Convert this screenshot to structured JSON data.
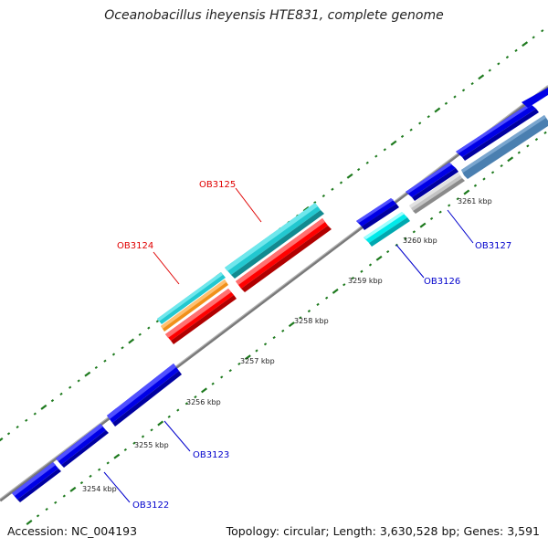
{
  "title": "Oceanobacillus iheyensis HTE831, complete genome",
  "accession": "Accession: NC_004193",
  "summary": "Topology: circular; Length: 3,630,528 bp; Genes: 3,591",
  "colors": {
    "backbone": "#808080",
    "ticks": "#1e7a1e",
    "blue": "#0000e6",
    "steel": "#4a7fb0",
    "gray": "#c4c4c4",
    "cyan": "#00dcdc",
    "cyan_dark": "#22c8d0",
    "orange": "#f0901a",
    "red": "#ff0000",
    "label_blue": "#0000cc",
    "label_red": "#e00000"
  },
  "kbp_labels": [
    "3254 kbp",
    "3255 kbp",
    "3256 kbp",
    "3257 kbp",
    "3258 kbp",
    "3259 kbp",
    "3260 kbp",
    "3261 kbp"
  ],
  "gene_labels": [
    "OB3122",
    "OB3123",
    "OB3124",
    "OB3125",
    "OB3126",
    "OB3127"
  ]
}
